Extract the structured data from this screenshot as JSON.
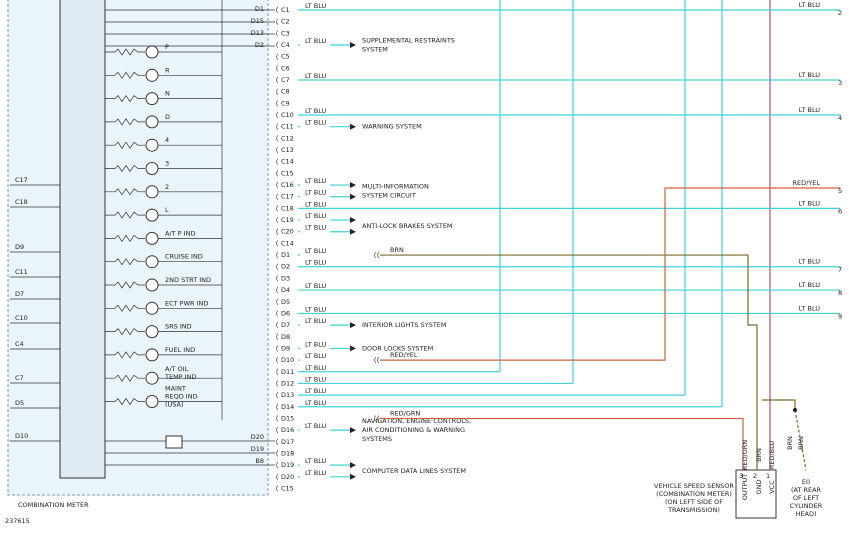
{
  "figure_id": "237615",
  "meter": {
    "title": "COMBINATION METER",
    "left_pins": [
      "C17",
      "C18",
      "D9",
      "C11",
      "D7",
      "C10",
      "C4",
      "C7",
      "D5",
      "D10"
    ],
    "top_pins": [
      "D1",
      "D15",
      "D13",
      "D2"
    ],
    "bottom_pins": [
      "D20",
      "D19",
      "B8"
    ],
    "indicators": [
      [
        "P"
      ],
      [
        "R"
      ],
      [
        "N"
      ],
      [
        "D"
      ],
      [
        "4"
      ],
      [
        "3"
      ],
      [
        "2"
      ],
      [
        "L"
      ],
      [
        "A/T P IND"
      ],
      [
        "CRUISE IND"
      ],
      [
        "2ND STRT IND"
      ],
      [
        "ECT PWR IND"
      ],
      [
        "SRS IND"
      ],
      [
        "FUEL IND"
      ],
      [
        "A/T OIL",
        "TEMP IND"
      ],
      [
        "MAINT",
        "REQD IND",
        "(USA)"
      ]
    ]
  },
  "connector": {
    "pins": [
      {
        "pin": "C1",
        "wire": "LT BLU"
      },
      {
        "pin": "C2"
      },
      {
        "pin": "C3"
      },
      {
        "pin": "C4",
        "wire": "LT BLU"
      },
      {
        "pin": "C5"
      },
      {
        "pin": "C6"
      },
      {
        "pin": "C7",
        "wire": "LT BLU"
      },
      {
        "pin": "C8"
      },
      {
        "pin": "C9"
      },
      {
        "pin": "C10",
        "wire": "LT BLU"
      },
      {
        "pin": "C11",
        "wire": "LT BLU"
      },
      {
        "pin": "C12"
      },
      {
        "pin": "C13"
      },
      {
        "pin": "C14"
      },
      {
        "pin": "C15"
      },
      {
        "pin": "C16",
        "wire": "LT BLU"
      },
      {
        "pin": "C17",
        "wire": "LT BLU"
      },
      {
        "pin": "C18",
        "wire": "LT BLU"
      },
      {
        "pin": "C19",
        "wire": "LT BLU"
      },
      {
        "pin": "C20",
        "wire": "LT BLU"
      },
      {
        "pin": "C14"
      },
      {
        "pin": "D1",
        "wire": "LT BLU"
      },
      {
        "pin": "D2",
        "wire": "LT BLU"
      },
      {
        "pin": "D3"
      },
      {
        "pin": "D4",
        "wire": "LT BLU"
      },
      {
        "pin": "D5"
      },
      {
        "pin": "D6",
        "wire": "LT BLU"
      },
      {
        "pin": "D7",
        "wire": "LT BLU"
      },
      {
        "pin": "D8"
      },
      {
        "pin": "D9",
        "wire": "LT BLU"
      },
      {
        "pin": "D10",
        "wire": "LT BLU"
      },
      {
        "pin": "D11",
        "wire": "LT BLU"
      },
      {
        "pin": "D12",
        "wire": "LT BLU"
      },
      {
        "pin": "D13",
        "wire": "LT BLU"
      },
      {
        "pin": "D14",
        "wire": "LT BLU"
      },
      {
        "pin": "D15"
      },
      {
        "pin": "D16",
        "wire": "LT BLU"
      },
      {
        "pin": "D17"
      },
      {
        "pin": "D18"
      },
      {
        "pin": "D19",
        "wire": "LT BLU"
      },
      {
        "pin": "D20",
        "wire": "LT BLU"
      },
      {
        "pin": "C15"
      }
    ]
  },
  "splices": [
    {
      "wire": "BRN"
    },
    {
      "wire": "RED/YEL"
    },
    {
      "wire": "RED/GRN"
    }
  ],
  "systems": [
    [
      "SUPPLEMENTAL RESTRAINTS",
      "SYSTEM"
    ],
    [
      "WARNING SYSTEM"
    ],
    [
      "MULTI-INFORMATION",
      "SYSTEM CIRCUIT"
    ],
    [
      "ANTI-LOCK BRAKES SYSTEM"
    ],
    [
      "INTERIOR LIGHTS SYSTEM"
    ],
    [
      "DOOR LOCKS SYSTEM"
    ],
    [
      "NAVIGATION, ENGINE CONTROLS,",
      "AIR CONDITIONING & WARNING",
      "SYSTEMS"
    ],
    [
      "COMPUTER DATA LINES SYSTEM"
    ]
  ],
  "terminals": [
    {
      "wire": "LT BLU",
      "number": "2"
    },
    {
      "wire": "LT BLU",
      "number": "3"
    },
    {
      "wire": "LT BLU",
      "number": "4"
    },
    {
      "wire": "RED/YEL",
      "number": "5"
    },
    {
      "wire": "LT BLU",
      "number": "6"
    },
    {
      "wire": "LT BLU",
      "number": "7"
    },
    {
      "wire": "LT BLU",
      "number": "8"
    },
    {
      "wire": "LT BLU",
      "number": "9"
    }
  ],
  "sensor": {
    "pins": [
      {
        "number": "3",
        "name": "OUTPUT",
        "wire": "RED/GRN"
      },
      {
        "number": "2",
        "name": "GND",
        "wire": "BRN"
      },
      {
        "number": "1",
        "name": "VCC",
        "wire": "RED/BLU"
      }
    ],
    "label": [
      "VEHICLE SPEED SENSOR",
      "(COMBINATION METER)",
      "(ON LEFT SIDE OF",
      "TRANSMISSION)"
    ]
  },
  "ground": {
    "wires": [
      "BRN",
      "BRN"
    ],
    "label": [
      "E0",
      "(AT REAR",
      "OF LEFT",
      "CYLINDER",
      "HEAD)"
    ]
  }
}
